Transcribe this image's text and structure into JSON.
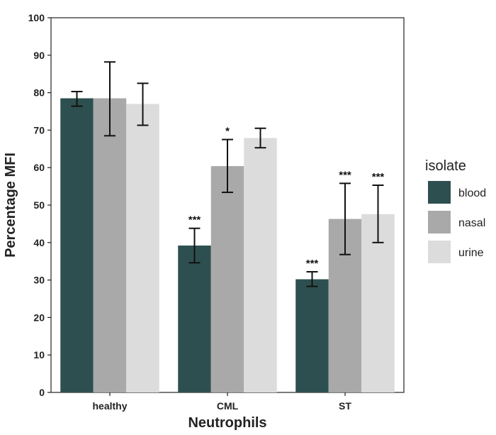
{
  "chart_data": {
    "type": "bar",
    "xlabel": "Neutrophils",
    "ylabel": "Percentage MFI",
    "ylim": [
      0,
      100
    ],
    "yticks": [
      0,
      10,
      20,
      30,
      40,
      50,
      60,
      70,
      80,
      90,
      100
    ],
    "categories": [
      "healthy",
      "CML",
      "ST"
    ],
    "legend": {
      "title": "isolate",
      "position": "right"
    },
    "grid": false,
    "series": [
      {
        "name": "blood",
        "color": "#2e4f4f",
        "values": [
          78.5,
          39.2,
          30.2
        ],
        "err_low": [
          76.4,
          34.6,
          28.3
        ],
        "err_high": [
          80.3,
          43.8,
          32.2
        ],
        "annotations": [
          "",
          "***",
          "***"
        ]
      },
      {
        "name": "nasal",
        "color": "#a9a9a9",
        "values": [
          78.5,
          60.4,
          46.3
        ],
        "err_low": [
          68.5,
          53.4,
          36.8
        ],
        "err_high": [
          88.2,
          67.5,
          55.8
        ],
        "annotations": [
          "",
          "*",
          "***"
        ]
      },
      {
        "name": "urine",
        "color": "#dcdcdc",
        "values": [
          77.0,
          67.9,
          47.6
        ],
        "err_low": [
          71.3,
          65.3,
          40.0
        ],
        "err_high": [
          82.5,
          70.5,
          55.3
        ],
        "annotations": [
          "",
          "",
          "***"
        ]
      }
    ]
  }
}
